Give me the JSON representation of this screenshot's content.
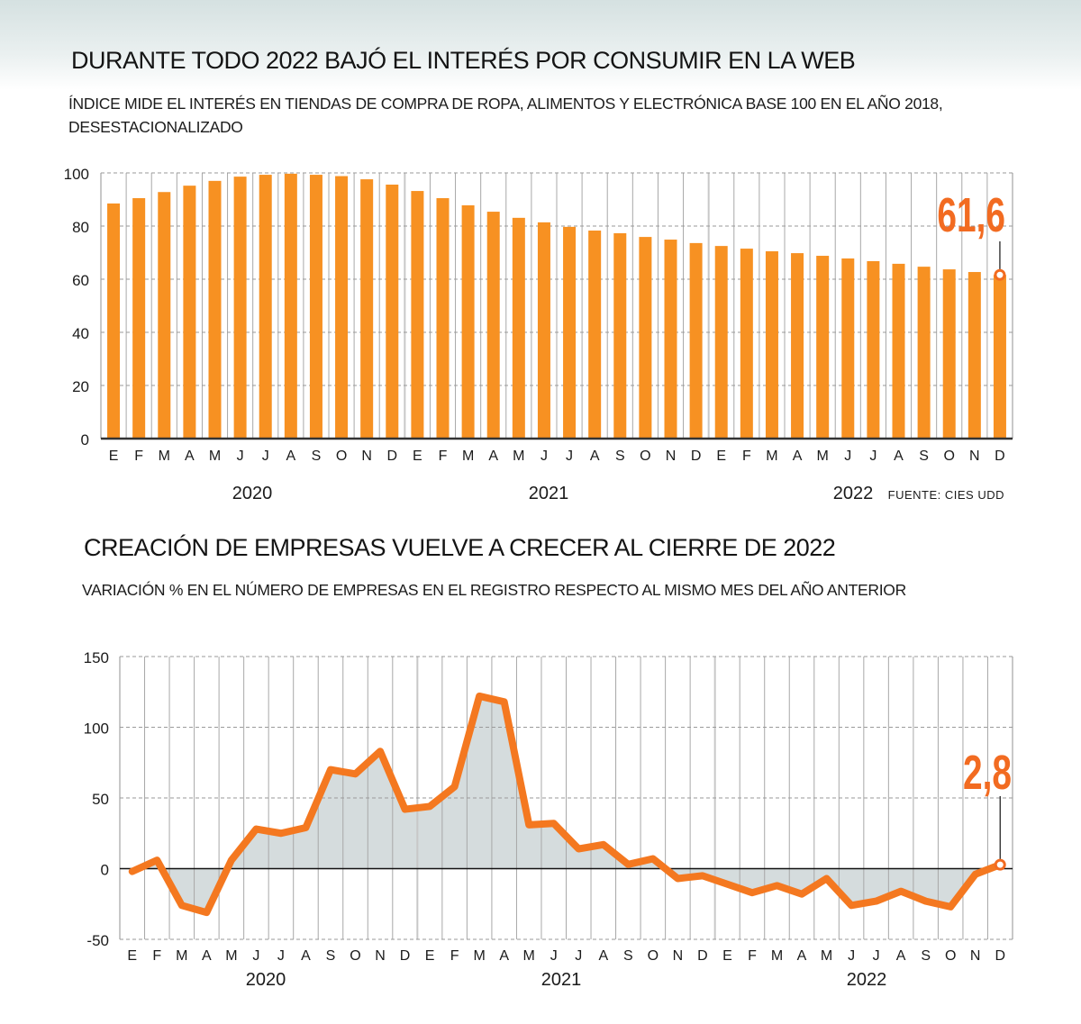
{
  "colors": {
    "bar": "#f79122",
    "line": "#f47820",
    "highlight": "#f26b21",
    "area_fill": "#d5dcdd",
    "grid": "#9a9a9a",
    "axis": "#333333"
  },
  "months": [
    "E",
    "F",
    "M",
    "A",
    "M",
    "J",
    "J",
    "A",
    "S",
    "O",
    "N",
    "D",
    "E",
    "F",
    "M",
    "A",
    "M",
    "J",
    "J",
    "A",
    "S",
    "O",
    "N",
    "D",
    "E",
    "F",
    "M",
    "A",
    "M",
    "J",
    "J",
    "A",
    "S",
    "O",
    "N",
    "D"
  ],
  "years": [
    "2020",
    "2021",
    "2022"
  ],
  "chart_data": [
    {
      "type": "bar",
      "title": "DURANTE TODO 2022 BAJÓ EL INTERÉS POR CONSUMIR EN LA WEB",
      "subtitle_line1": "ÍNDICE MIDE EL INTERÉS EN TIENDAS DE COMPRA DE ROPA, ALIMENTOS Y ELECTRÓNICA BASE 100 EN EL AÑO 2018,",
      "subtitle_line2": "DESESTACIONALIZADO",
      "source": "FUENTE: CIES UDD",
      "xlabel": "",
      "ylabel": "",
      "ylim": [
        0,
        100
      ],
      "yticks": [
        0,
        20,
        40,
        60,
        80,
        100
      ],
      "ytick_labels": [
        "0",
        "20",
        "40",
        "60",
        "80",
        "100"
      ],
      "grid": true,
      "highlight_label": "61,6",
      "highlight_index": 35,
      "categories": [
        "E 2020",
        "F 2020",
        "M 2020",
        "A 2020",
        "M 2020",
        "J 2020",
        "J 2020",
        "A 2020",
        "S 2020",
        "O 2020",
        "N 2020",
        "D 2020",
        "E 2021",
        "F 2021",
        "M 2021",
        "A 2021",
        "M 2021",
        "J 2021",
        "J 2021",
        "A 2021",
        "S 2021",
        "O 2021",
        "N 2021",
        "D 2021",
        "E 2022",
        "F 2022",
        "M 2022",
        "A 2022",
        "M 2022",
        "J 2022",
        "J 2022",
        "A 2022",
        "S 2022",
        "O 2022",
        "N 2022",
        "D 2022"
      ],
      "values": [
        88.5,
        90.5,
        92.8,
        95.2,
        97.0,
        98.6,
        99.3,
        99.7,
        99.3,
        98.8,
        97.6,
        95.6,
        93.2,
        90.5,
        87.8,
        85.4,
        83.1,
        81.4,
        79.7,
        78.3,
        77.3,
        75.9,
        74.9,
        73.6,
        72.5,
        71.5,
        70.5,
        69.8,
        68.8,
        67.8,
        66.8,
        65.8,
        64.7,
        63.7,
        62.7,
        61.6
      ]
    },
    {
      "type": "area",
      "title": "CREACIÓN DE EMPRESAS VUELVE A CRECER AL CIERRE DE 2022",
      "subtitle_line1": "VARIACIÓN % EN EL NÚMERO DE EMPRESAS EN EL REGISTRO RESPECTO AL MISMO MES DEL AÑO ANTERIOR",
      "xlabel": "",
      "ylabel": "",
      "ylim": [
        -50,
        150
      ],
      "yticks": [
        -50,
        0,
        50,
        100,
        150
      ],
      "ytick_labels": [
        "-50",
        "0",
        "50",
        "100",
        "150"
      ],
      "grid": true,
      "highlight_label": "2,8",
      "highlight_index": 35,
      "categories": [
        "E 2020",
        "F 2020",
        "M 2020",
        "A 2020",
        "M 2020",
        "J 2020",
        "J 2020",
        "A 2020",
        "S 2020",
        "O 2020",
        "N 2020",
        "D 2020",
        "E 2021",
        "F 2021",
        "M 2021",
        "A 2021",
        "M 2021",
        "J 2021",
        "J 2021",
        "A 2021",
        "S 2021",
        "O 2021",
        "N 2021",
        "D 2021",
        "E 2022",
        "F 2022",
        "M 2022",
        "A 2022",
        "M 2022",
        "J 2022",
        "J 2022",
        "A 2022",
        "S 2022",
        "O 2022",
        "N 2022",
        "D 2022"
      ],
      "values": [
        -2,
        6,
        -26,
        -31,
        6,
        28,
        25,
        29,
        70,
        67,
        83,
        42,
        44,
        58,
        122,
        118,
        31,
        32,
        14,
        17,
        3,
        7,
        -7,
        -5,
        -11,
        -17,
        -12,
        -18,
        -7,
        -26,
        -23,
        -16,
        -23,
        -27,
        -4,
        2.8
      ]
    }
  ]
}
